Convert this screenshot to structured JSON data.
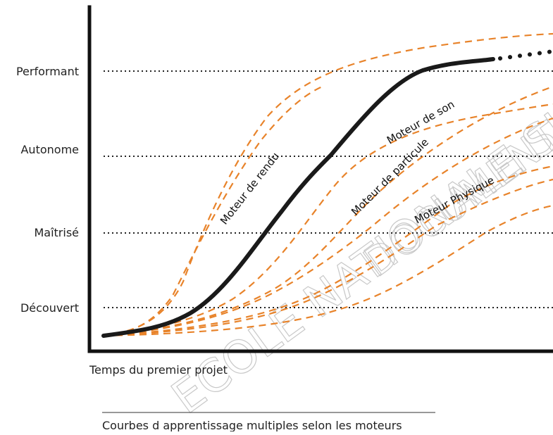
{
  "levels": [
    {
      "label": "Performant"
    },
    {
      "label": "Autonome"
    },
    {
      "label": "Maîtrisé"
    },
    {
      "label": "Découvert"
    }
  ],
  "x_axis_label": "Temps du premier projet",
  "caption": "Courbes d apprentissage multiples selon les moteurs",
  "curves": [
    {
      "label": "Moteur de rendu"
    },
    {
      "label": "Moteur de son"
    },
    {
      "label": "Moteur de particule"
    },
    {
      "label": "Moteur Physique"
    }
  ],
  "watermark": {
    "line1": "ECOLE NATIONALE SUPER",
    "line2": "DOCUMENT"
  },
  "colors": {
    "main_curve": "#1a1a1a",
    "dashed_curves": "#e8832a",
    "grid": "#222222",
    "axis": "#111111"
  }
}
